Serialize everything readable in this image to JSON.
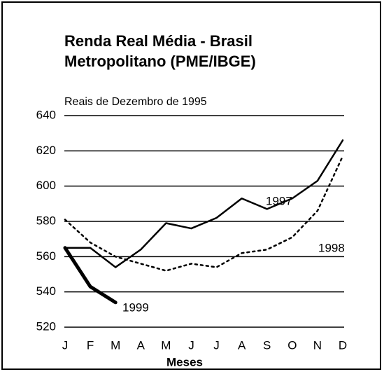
{
  "chart_data": {
    "type": "line",
    "title": [
      "Renda Real Média - Brasil",
      "Metropolitano (PME/IBGE)"
    ],
    "ylabel": "Reais de Dezembro de 1995",
    "xlabel": "Meses",
    "categories": [
      "J",
      "F",
      "M",
      "A",
      "M",
      "J",
      "J",
      "A",
      "S",
      "O",
      "N",
      "D"
    ],
    "ylim": [
      520,
      640
    ],
    "yticks": [
      520,
      540,
      560,
      580,
      600,
      620,
      640
    ],
    "grid": true,
    "series": [
      {
        "name": "1997",
        "color": "#000000",
        "style": "solid",
        "values": [
          565,
          565,
          554,
          564,
          579,
          576,
          582,
          593,
          587,
          593,
          603,
          626
        ]
      },
      {
        "name": "1998",
        "color": "#000000",
        "style": "dotted",
        "values": [
          581,
          568,
          560,
          556,
          552,
          556,
          554,
          562,
          564,
          571,
          586,
          617
        ]
      },
      {
        "name": "1999",
        "color": "#000000",
        "style": "thick",
        "values": [
          565,
          543,
          534,
          null,
          null,
          null,
          null,
          null,
          null,
          null,
          null,
          null
        ]
      }
    ]
  }
}
